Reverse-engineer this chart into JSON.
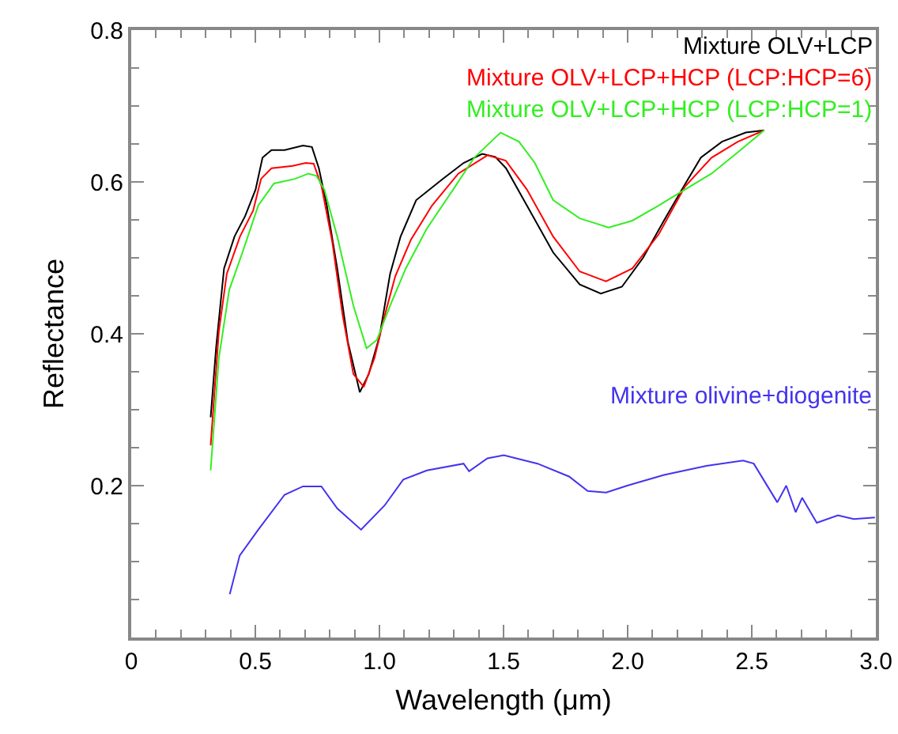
{
  "chart_data": {
    "type": "line",
    "xlabel": "Wavelength (μm)",
    "ylabel": "Reflectance",
    "xlim": [
      0,
      3
    ],
    "ylim": [
      0,
      0.8
    ],
    "xticks": [
      0,
      0.5,
      {
        "value": 1,
        "label": "1.0"
      },
      1.5,
      {
        "value": 2,
        "label": "2.0"
      },
      2.5,
      {
        "value": 3,
        "label": "3.0"
      }
    ],
    "yticks": [
      0.2,
      0.4,
      0.6,
      0.8
    ],
    "marker": "none",
    "line_style": "solid",
    "series": [
      {
        "name": "Mixture OLV+LCP",
        "color": "#000000",
        "x": [
          0.32,
          0.342,
          0.374,
          0.416,
          0.459,
          0.501,
          0.529,
          0.565,
          0.618,
          0.692,
          0.728,
          0.756,
          0.788,
          0.83,
          0.873,
          0.921,
          0.957,
          1.0,
          1.043,
          1.085,
          1.148,
          1.255,
          1.339,
          1.414,
          1.467,
          1.51,
          1.594,
          1.7,
          1.807,
          1.892,
          1.977,
          2.062,
          2.146,
          2.231,
          2.295,
          2.38,
          2.476,
          2.55
        ],
        "values": [
          0.29,
          0.382,
          0.486,
          0.528,
          0.555,
          0.59,
          0.632,
          0.642,
          0.642,
          0.648,
          0.646,
          0.618,
          0.569,
          0.486,
          0.389,
          0.323,
          0.347,
          0.396,
          0.479,
          0.528,
          0.576,
          0.604,
          0.625,
          0.637,
          0.633,
          0.618,
          0.569,
          0.507,
          0.465,
          0.453,
          0.462,
          0.5,
          0.549,
          0.597,
          0.632,
          0.653,
          0.665,
          0.668
        ]
      },
      {
        "name": "Mixture OLV+LCP+HCP (LCP:HCP=6)",
        "color": "#ff0000",
        "x": [
          0.32,
          0.353,
          0.385,
          0.438,
          0.491,
          0.523,
          0.565,
          0.65,
          0.703,
          0.735,
          0.767,
          0.81,
          0.852,
          0.895,
          0.937,
          0.98,
          1.021,
          1.064,
          1.127,
          1.212,
          1.318,
          1.435,
          1.509,
          1.594,
          1.7,
          1.807,
          1.913,
          2.019,
          2.125,
          2.231,
          2.338,
          2.444,
          2.55
        ],
        "values": [
          0.253,
          0.403,
          0.479,
          0.528,
          0.562,
          0.604,
          0.618,
          0.621,
          0.625,
          0.624,
          0.594,
          0.521,
          0.424,
          0.347,
          0.33,
          0.368,
          0.424,
          0.476,
          0.524,
          0.569,
          0.611,
          0.635,
          0.628,
          0.59,
          0.528,
          0.482,
          0.469,
          0.486,
          0.531,
          0.594,
          0.632,
          0.653,
          0.668
        ]
      },
      {
        "name": "Mixture OLV+LCP+HCP (LCP:HCP=1)",
        "color": "#33ee22",
        "x": [
          0.32,
          0.353,
          0.395,
          0.448,
          0.512,
          0.575,
          0.66,
          0.714,
          0.746,
          0.778,
          0.83,
          0.895,
          0.948,
          0.99,
          1.043,
          1.106,
          1.19,
          1.297,
          1.382,
          1.488,
          1.562,
          1.626,
          1.7,
          1.807,
          1.923,
          2.019,
          2.125,
          2.231,
          2.338,
          2.444,
          2.55
        ],
        "values": [
          0.22,
          0.368,
          0.458,
          0.507,
          0.569,
          0.598,
          0.604,
          0.611,
          0.608,
          0.59,
          0.528,
          0.437,
          0.381,
          0.392,
          0.437,
          0.486,
          0.538,
          0.59,
          0.632,
          0.665,
          0.653,
          0.625,
          0.576,
          0.552,
          0.54,
          0.549,
          0.569,
          0.59,
          0.611,
          0.639,
          0.668
        ]
      },
      {
        "name": "Mixture olivine+diogenite",
        "color": "#4433ee",
        "x": [
          0.397,
          0.437,
          0.512,
          0.618,
          0.692,
          0.766,
          0.83,
          0.926,
          1.021,
          1.096,
          1.191,
          1.339,
          1.361,
          1.435,
          1.501,
          1.637,
          1.764,
          1.839,
          1.913,
          1.998,
          2.146,
          2.317,
          2.465,
          2.508,
          2.603,
          2.639,
          2.677,
          2.703,
          2.762,
          2.847,
          2.911,
          2.996
        ],
        "values": [
          0.057,
          0.108,
          0.142,
          0.188,
          0.199,
          0.199,
          0.17,
          0.142,
          0.174,
          0.208,
          0.22,
          0.229,
          0.219,
          0.236,
          0.24,
          0.229,
          0.212,
          0.193,
          0.191,
          0.2,
          0.214,
          0.226,
          0.233,
          0.229,
          0.178,
          0.2,
          0.165,
          0.184,
          0.151,
          0.161,
          0.156,
          0.158
        ]
      }
    ]
  }
}
